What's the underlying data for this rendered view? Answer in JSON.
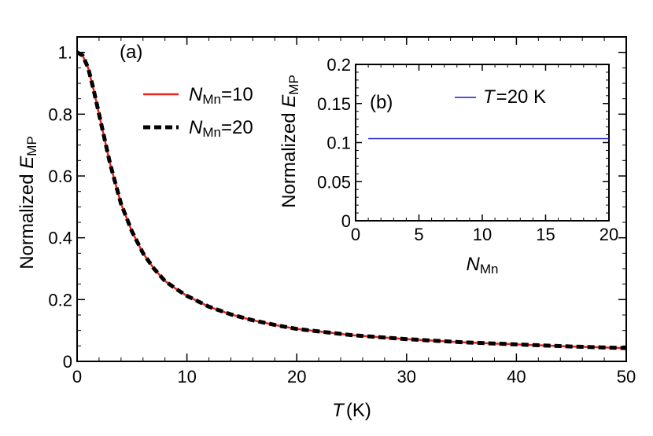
{
  "chart_data": [
    {
      "type": "line",
      "panel": "(a)",
      "xlabel": {
        "var": "T",
        "unit": "(K)"
      },
      "ylabel": {
        "text": "Normalized ",
        "var": "E",
        "sub": "MP"
      },
      "xlim": [
        0,
        50
      ],
      "ylim": [
        0,
        1.05
      ],
      "xticks": [
        0,
        10,
        20,
        30,
        40,
        50
      ],
      "xtick_labels": [
        "0",
        "10",
        "20",
        "30",
        "40",
        "50"
      ],
      "yticks": [
        0,
        0.2,
        0.4,
        0.6,
        0.8,
        1.0
      ],
      "ytick_labels": [
        "0",
        "0.2",
        "0.4",
        "0.6",
        "0.8",
        "1."
      ],
      "legend": "upper-middle",
      "grid": false,
      "x": [
        0,
        0.5,
        1,
        1.5,
        2,
        2.5,
        3,
        4,
        5,
        6,
        7,
        8,
        9,
        10,
        12,
        14,
        16,
        18,
        20,
        25,
        30,
        35,
        40,
        45,
        50
      ],
      "series": [
        {
          "name_var": "N",
          "name_sub": "Mn",
          "name_rest": "=10",
          "color": "#e8241c",
          "style": "solid",
          "values": [
            1.0,
            0.99,
            0.95,
            0.88,
            0.8,
            0.72,
            0.64,
            0.51,
            0.42,
            0.35,
            0.3,
            0.26,
            0.235,
            0.212,
            0.177,
            0.152,
            0.133,
            0.118,
            0.105,
            0.085,
            0.072,
            0.062,
            0.055,
            0.048,
            0.043
          ]
        },
        {
          "name_var": "N",
          "name_sub": "Mn",
          "name_rest": "=20",
          "color": "#000000",
          "style": "dashed",
          "values": [
            1.0,
            0.99,
            0.95,
            0.88,
            0.8,
            0.72,
            0.64,
            0.51,
            0.42,
            0.35,
            0.3,
            0.26,
            0.235,
            0.212,
            0.177,
            0.152,
            0.133,
            0.118,
            0.105,
            0.085,
            0.072,
            0.062,
            0.055,
            0.048,
            0.043
          ]
        }
      ]
    },
    {
      "type": "line",
      "panel": "(b)",
      "xlabel": {
        "var": "N",
        "sub": "Mn"
      },
      "ylabel": {
        "text": "Normalized ",
        "var": "E",
        "sub": "MP"
      },
      "xlim": [
        0,
        20
      ],
      "ylim": [
        0,
        0.2
      ],
      "xticks": [
        0,
        5,
        10,
        15,
        20
      ],
      "xtick_labels": [
        "0",
        "5",
        "10",
        "15",
        "20"
      ],
      "yticks": [
        0,
        0.05,
        0.1,
        0.15,
        0.2
      ],
      "ytick_labels": [
        "0",
        "0.05",
        "0.1",
        "0.15",
        "0.2"
      ],
      "legend": "top-right",
      "grid": false,
      "series": [
        {
          "name_var": "T",
          "name_rest": "=20 K",
          "color": "#1a1ac8",
          "style": "solid",
          "x": [
            1,
            20
          ],
          "values": [
            0.105,
            0.105
          ]
        }
      ]
    }
  ]
}
